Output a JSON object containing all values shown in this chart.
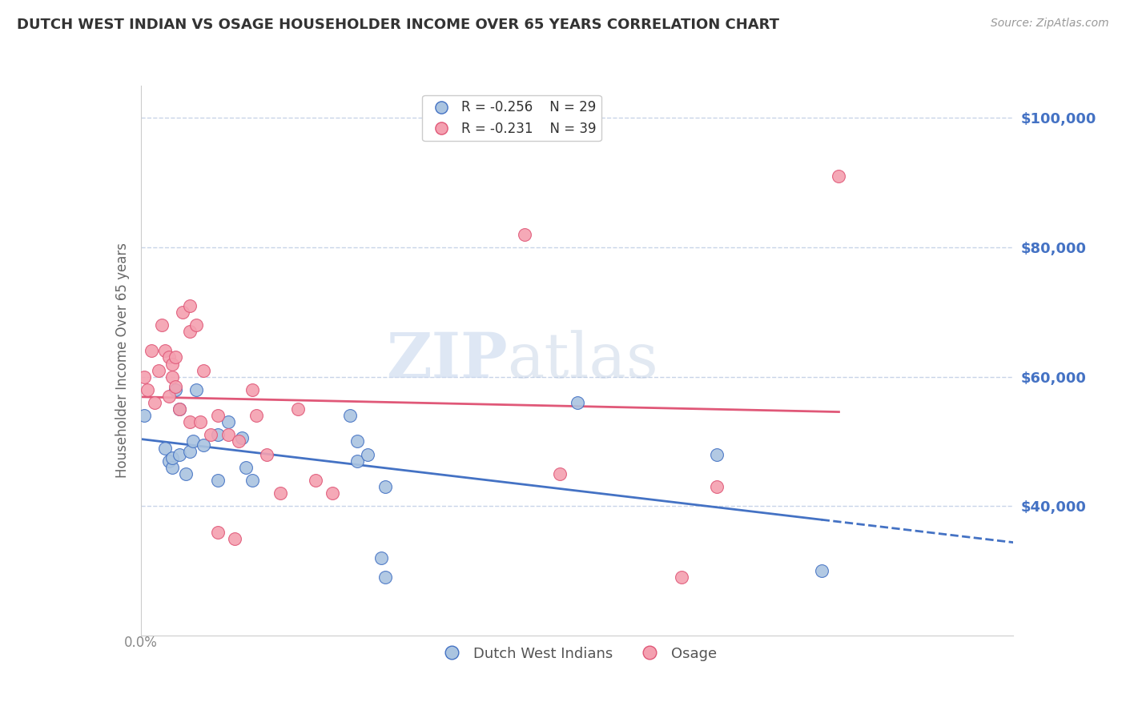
{
  "title": "DUTCH WEST INDIAN VS OSAGE HOUSEHOLDER INCOME OVER 65 YEARS CORRELATION CHART",
  "source": "Source: ZipAtlas.com",
  "ylabel": "Householder Income Over 65 years",
  "legend_blue_r": "R = -0.256",
  "legend_blue_n": "N = 29",
  "legend_pink_r": "R = -0.231",
  "legend_pink_n": "N = 39",
  "watermark_zip": "ZIP",
  "watermark_atlas": "atlas",
  "blue_color": "#aac4e0",
  "pink_color": "#f4a0b0",
  "line_blue": "#4472c4",
  "line_pink": "#e05878",
  "axis_label_color": "#4472c4",
  "title_color": "#333333",
  "grid_color": "#c8d4e8",
  "xlim": [
    0.0,
    0.25
  ],
  "ylim": [
    20000,
    105000
  ],
  "yticks": [
    40000,
    60000,
    80000,
    100000
  ],
  "blue_x": [
    0.001,
    0.007,
    0.008,
    0.009,
    0.009,
    0.01,
    0.011,
    0.011,
    0.013,
    0.014,
    0.015,
    0.016,
    0.018,
    0.022,
    0.022,
    0.025,
    0.029,
    0.03,
    0.032,
    0.06,
    0.062,
    0.062,
    0.065,
    0.069,
    0.07,
    0.07,
    0.125,
    0.165,
    0.195
  ],
  "blue_y": [
    54000,
    49000,
    47000,
    46000,
    47500,
    58000,
    55000,
    48000,
    45000,
    48500,
    50000,
    58000,
    49500,
    51000,
    44000,
    53000,
    50500,
    46000,
    44000,
    54000,
    50000,
    47000,
    48000,
    32000,
    29000,
    43000,
    56000,
    48000,
    30000
  ],
  "pink_x": [
    0.001,
    0.002,
    0.003,
    0.004,
    0.005,
    0.006,
    0.007,
    0.008,
    0.008,
    0.009,
    0.009,
    0.01,
    0.01,
    0.011,
    0.012,
    0.014,
    0.014,
    0.014,
    0.016,
    0.017,
    0.018,
    0.02,
    0.022,
    0.022,
    0.025,
    0.027,
    0.028,
    0.032,
    0.033,
    0.036,
    0.04,
    0.045,
    0.05,
    0.055,
    0.11,
    0.12,
    0.155,
    0.165,
    0.2
  ],
  "pink_y": [
    60000,
    58000,
    64000,
    56000,
    61000,
    68000,
    64000,
    63000,
    57000,
    60000,
    62000,
    58500,
    63000,
    55000,
    70000,
    71000,
    67000,
    53000,
    68000,
    53000,
    61000,
    51000,
    54000,
    36000,
    51000,
    35000,
    50000,
    58000,
    54000,
    48000,
    42000,
    55000,
    44000,
    42000,
    82000,
    45000,
    29000,
    43000,
    91000
  ]
}
